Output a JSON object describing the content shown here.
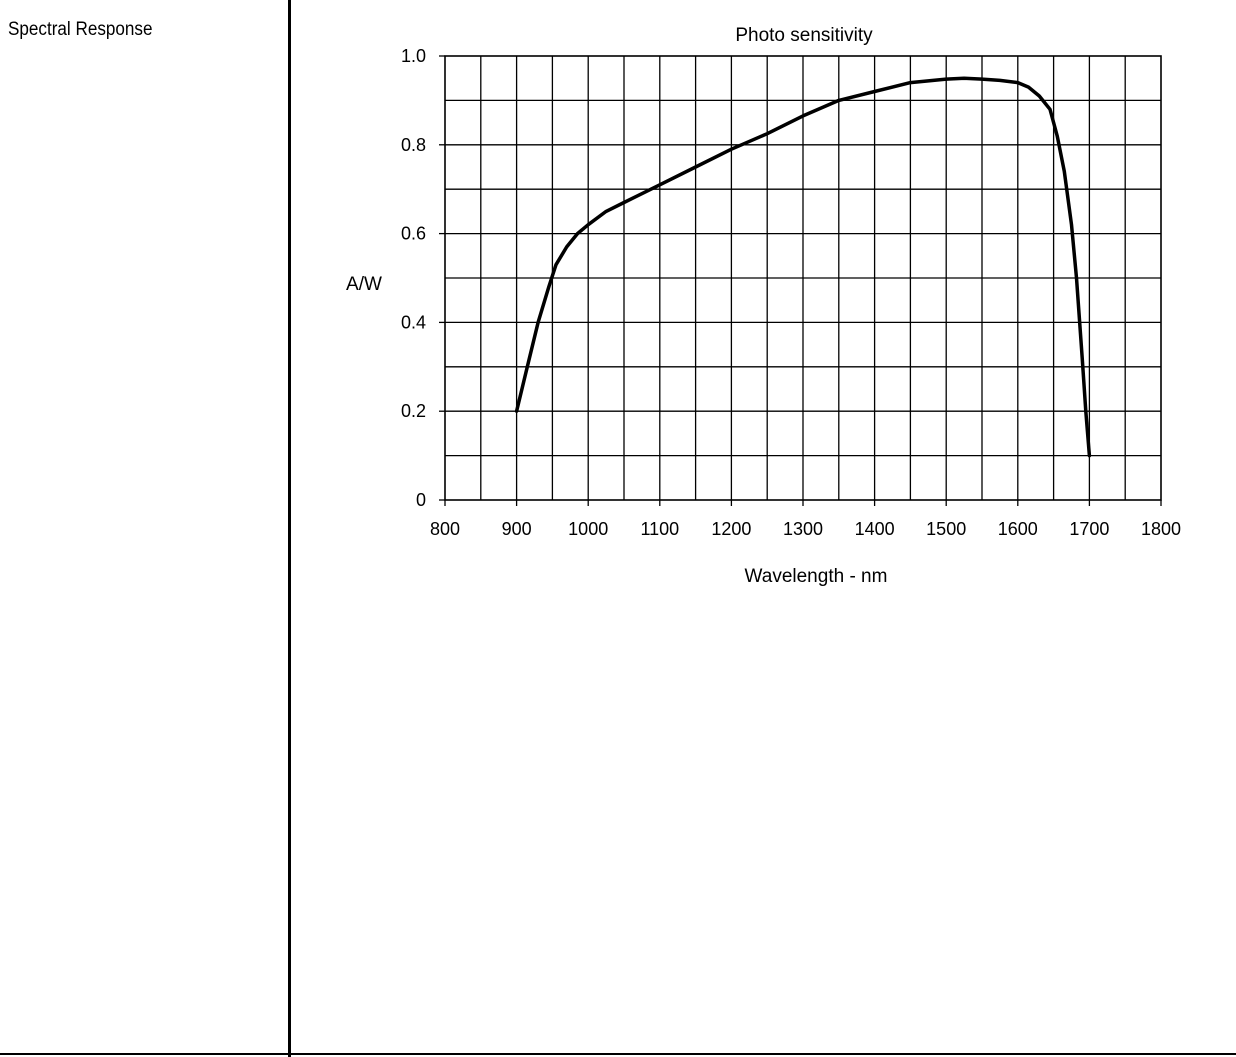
{
  "section": {
    "label": "Spectral Response"
  },
  "chart_data": {
    "type": "line",
    "title": "Photo sensitivity",
    "xlabel": "Wavelength - nm",
    "ylabel": "A/W",
    "xlim": [
      800,
      1800
    ],
    "ylim": [
      0,
      1.0
    ],
    "x_ticks": [
      800,
      900,
      1000,
      1100,
      1200,
      1300,
      1400,
      1500,
      1600,
      1700,
      1800
    ],
    "x_tick_labels": [
      "800",
      "900",
      "1000",
      "1100",
      "1200",
      "1300",
      "1400",
      "1500",
      "1600",
      "1700",
      "1800"
    ],
    "y_ticks": [
      0,
      0.2,
      0.4,
      0.6,
      0.8,
      1.0
    ],
    "y_tick_labels": [
      "0",
      "0.2",
      "0.4",
      "0.6",
      "0.8",
      "1.0"
    ],
    "grid": true,
    "grid_x_step": 50,
    "grid_y_step": 0.1,
    "line_color": "#000000",
    "series": [
      {
        "x": [
          900,
          915,
          930,
          945,
          955,
          970,
          985,
          1000,
          1025,
          1050,
          1100,
          1150,
          1200,
          1250,
          1300,
          1350,
          1400,
          1450,
          1500,
          1525,
          1550,
          1575,
          1600,
          1615,
          1630,
          1645,
          1655,
          1665,
          1675,
          1682,
          1690,
          1695,
          1700
        ],
        "y": [
          0.2,
          0.3,
          0.4,
          0.48,
          0.53,
          0.57,
          0.6,
          0.62,
          0.65,
          0.67,
          0.71,
          0.75,
          0.79,
          0.825,
          0.865,
          0.9,
          0.92,
          0.94,
          0.948,
          0.95,
          0.948,
          0.945,
          0.94,
          0.93,
          0.91,
          0.88,
          0.82,
          0.74,
          0.62,
          0.5,
          0.32,
          0.2,
          0.1
        ]
      }
    ]
  }
}
